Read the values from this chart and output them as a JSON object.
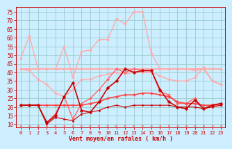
{
  "x": [
    0,
    1,
    2,
    3,
    4,
    5,
    6,
    7,
    8,
    9,
    10,
    11,
    12,
    13,
    14,
    15,
    16,
    17,
    18,
    19,
    20,
    21,
    22,
    23
  ],
  "series": [
    {
      "label": "rafales_pink",
      "color": "#ffaaaa",
      "linewidth": 1.0,
      "marker": "D",
      "markersize": 2.0,
      "linestyle": "-",
      "y": [
        48,
        61,
        42,
        42,
        42,
        55,
        37,
        52,
        53,
        59,
        59,
        71,
        68,
        75,
        75,
        51,
        42,
        42,
        42,
        42,
        41,
        42,
        35,
        33
      ]
    },
    {
      "label": "vent_pink_flat",
      "color": "#ffaaaa",
      "linewidth": 1.4,
      "marker": "D",
      "markersize": 2.0,
      "linestyle": "-",
      "y": [
        42,
        42,
        42,
        42,
        42,
        42,
        42,
        42,
        42,
        42,
        42,
        42,
        42,
        42,
        42,
        42,
        42,
        42,
        42,
        42,
        42,
        42,
        42,
        42
      ]
    },
    {
      "label": "vent_pink_declining",
      "color": "#ffaaaa",
      "linewidth": 1.0,
      "marker": "D",
      "markersize": 2.0,
      "linestyle": "-",
      "y": [
        42,
        41,
        36,
        33,
        28,
        26,
        30,
        36,
        36,
        38,
        39,
        40,
        39,
        40,
        40,
        40,
        38,
        36,
        35,
        35,
        37,
        43,
        35,
        33
      ]
    },
    {
      "label": "rafales_medium",
      "color": "#ff6666",
      "linewidth": 1.0,
      "marker": "D",
      "markersize": 2.0,
      "linestyle": "-",
      "y": [
        21,
        21,
        21,
        11,
        16,
        26,
        13,
        22,
        25,
        30,
        36,
        42,
        40,
        42,
        41,
        41,
        29,
        27,
        22,
        22,
        25,
        19,
        21,
        21
      ]
    },
    {
      "label": "vent_medium_flat",
      "color": "#ff4444",
      "linewidth": 1.2,
      "marker": "D",
      "markersize": 2.0,
      "linestyle": "-",
      "y": [
        21,
        21,
        21,
        21,
        21,
        21,
        21,
        21,
        22,
        23,
        25,
        26,
        27,
        27,
        28,
        28,
        27,
        26,
        23,
        22,
        22,
        21,
        21,
        22
      ]
    },
    {
      "label": "vent_dark_spiky",
      "color": "#cc0000",
      "linewidth": 1.2,
      "marker": "D",
      "markersize": 2.5,
      "linestyle": "-",
      "y": [
        21,
        21,
        21,
        11,
        15,
        26,
        34,
        18,
        17,
        23,
        31,
        35,
        42,
        40,
        41,
        41,
        30,
        23,
        20,
        19,
        24,
        19,
        21,
        22
      ]
    },
    {
      "label": "vent_lowest",
      "color": "#cc0000",
      "linewidth": 0.8,
      "marker": "D",
      "markersize": 1.5,
      "linestyle": "-",
      "y": [
        21,
        21,
        21,
        10,
        14,
        13,
        12,
        16,
        17,
        18,
        20,
        21,
        20,
        21,
        21,
        21,
        21,
        21,
        20,
        20,
        20,
        19,
        20,
        21
      ]
    }
  ],
  "arrows": {
    "y": 9.0,
    "color": "#ff6666",
    "angles": [
      0,
      0,
      0,
      -45,
      -45,
      0,
      0,
      45,
      45,
      45,
      45,
      45,
      45,
      45,
      45,
      0,
      0,
      0,
      0,
      0,
      0,
      0,
      0,
      0
    ]
  },
  "xlabel": "Vent moyen/en rafales ( km/h )",
  "yticks": [
    10,
    15,
    20,
    25,
    30,
    35,
    40,
    45,
    50,
    55,
    60,
    65,
    70,
    75
  ],
  "ylim": [
    8,
    78
  ],
  "xlim": [
    -0.5,
    23.5
  ],
  "bg_color": "#cceeff",
  "grid_color": "#99cccc",
  "tick_color": "#cc0000",
  "xlabel_color": "#cc0000",
  "spine_color": "#cc0000"
}
